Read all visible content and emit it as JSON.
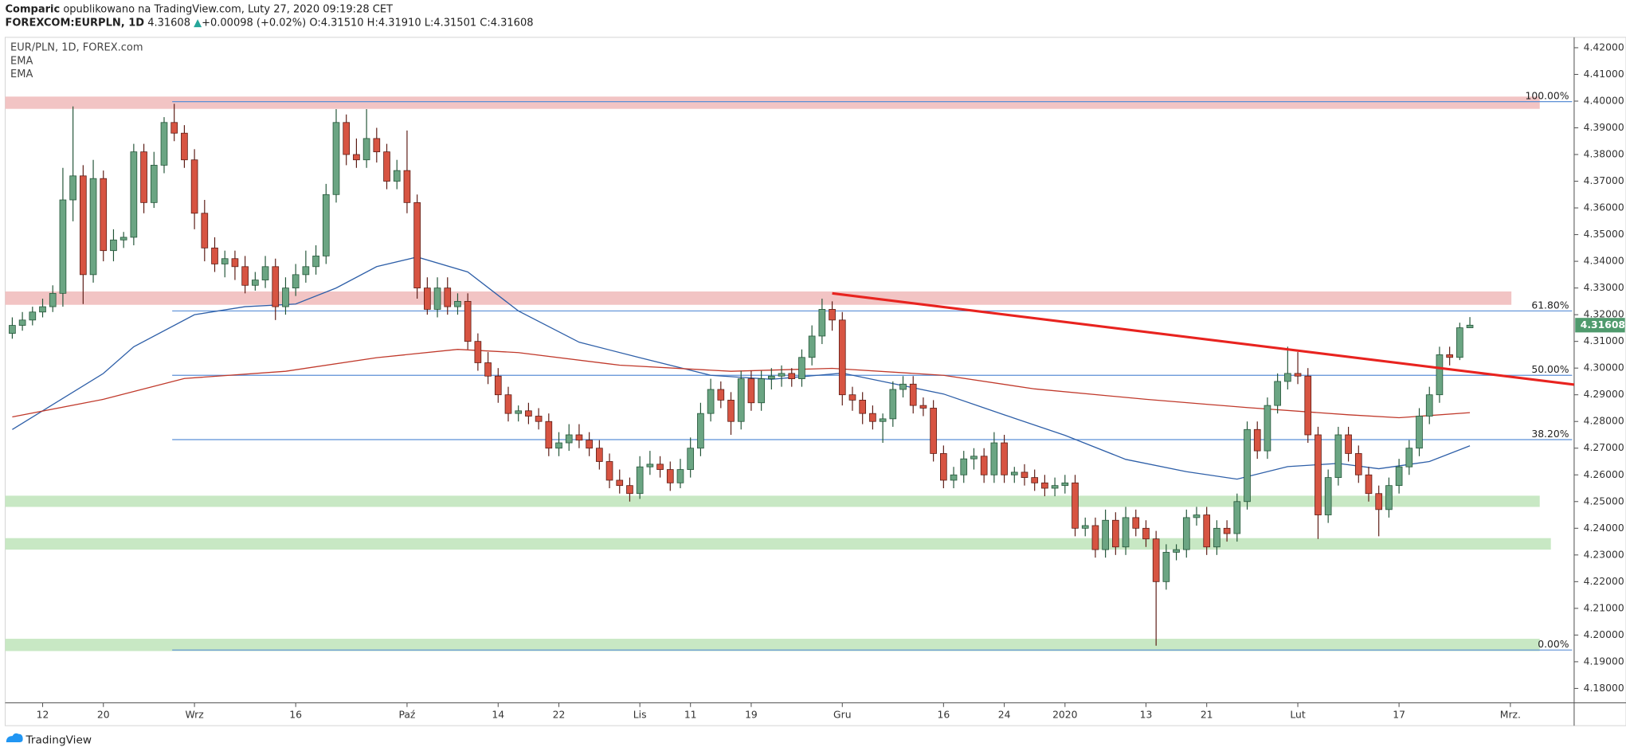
{
  "header": {
    "author": "Comparic",
    "published": "opublikowano na TradingView.com, Luty 27, 2020 09:19:28 CET",
    "symbol": "FOREXCOM:EURPLN, 1D",
    "last": "4.31608",
    "arrow": "▲",
    "change": "+0.00098 (+0.02%)",
    "open": "O:4.31510",
    "high": "H:4.31910",
    "low": "L:4.31501",
    "close": "C:4.31608"
  },
  "footer": {
    "brand": "TradingView"
  },
  "chart_data": {
    "type": "candlestick",
    "title": "EUR/PLN, 1D, FOREX.com",
    "up_color": "#6ba583",
    "down_color": "#d75442",
    "up_border": "#225437",
    "down_border": "#5b1a13",
    "xlim": [
      -0.7,
      154.3
    ],
    "ylim": [
      4.1746,
      4.4239
    ],
    "xticks": [
      {
        "value": 3,
        "label": "12"
      },
      {
        "value": 9,
        "label": "20"
      },
      {
        "value": 18,
        "label": "Wrz"
      },
      {
        "value": 28,
        "label": "16"
      },
      {
        "value": 39,
        "label": "Paź"
      },
      {
        "value": 48,
        "label": "14"
      },
      {
        "value": 54,
        "label": "22"
      },
      {
        "value": 62,
        "label": "Lis"
      },
      {
        "value": 67,
        "label": "11"
      },
      {
        "value": 73,
        "label": "19"
      },
      {
        "value": 82,
        "label": "Gru"
      },
      {
        "value": 92,
        "label": "16"
      },
      {
        "value": 98,
        "label": "24"
      },
      {
        "value": 104,
        "label": "2020"
      },
      {
        "value": 112,
        "label": "13"
      },
      {
        "value": 118,
        "label": "21"
      },
      {
        "value": 127,
        "label": "Lut"
      },
      {
        "value": 137,
        "label": "17"
      },
      {
        "value": 148,
        "label": "Mrz."
      }
    ],
    "yticks": [
      {
        "value": 4.18,
        "label": "4.18000"
      },
      {
        "value": 4.19,
        "label": "4.19000"
      },
      {
        "value": 4.2,
        "label": "4.20000"
      },
      {
        "value": 4.21,
        "label": "4.21000"
      },
      {
        "value": 4.22,
        "label": "4.22000"
      },
      {
        "value": 4.23,
        "label": "4.23000"
      },
      {
        "value": 4.24,
        "label": "4.24000"
      },
      {
        "value": 4.25,
        "label": "4.25000"
      },
      {
        "value": 4.26,
        "label": "4.26000"
      },
      {
        "value": 4.27,
        "label": "4.27000"
      },
      {
        "value": 4.28,
        "label": "4.28000"
      },
      {
        "value": 4.29,
        "label": "4.29000"
      },
      {
        "value": 4.3,
        "label": "4.30000"
      },
      {
        "value": 4.31,
        "label": "4.31000"
      },
      {
        "value": 4.32,
        "label": "4.32000"
      },
      {
        "value": 4.33,
        "label": "4.33000"
      },
      {
        "value": 4.34,
        "label": "4.34000"
      },
      {
        "value": 4.35,
        "label": "4.35000"
      },
      {
        "value": 4.36,
        "label": "4.36000"
      },
      {
        "value": 4.37,
        "label": "4.37000"
      },
      {
        "value": 4.38,
        "label": "4.38000"
      },
      {
        "value": 4.39,
        "label": "4.39000"
      },
      {
        "value": 4.4,
        "label": "4.40000"
      },
      {
        "value": 4.41,
        "label": "4.41000"
      },
      {
        "value": 4.42,
        "label": "4.42000"
      }
    ],
    "ohlc": [
      [
        4.313,
        4.319,
        4.311,
        4.316
      ],
      [
        4.316,
        4.321,
        4.314,
        4.318
      ],
      [
        4.318,
        4.323,
        4.316,
        4.321
      ],
      [
        4.321,
        4.326,
        4.319,
        4.323
      ],
      [
        4.323,
        4.331,
        4.321,
        4.328
      ],
      [
        4.328,
        4.375,
        4.323,
        4.363
      ],
      [
        4.363,
        4.398,
        4.355,
        4.372
      ],
      [
        4.372,
        4.376,
        4.324,
        4.335
      ],
      [
        4.335,
        4.378,
        4.332,
        4.371
      ],
      [
        4.371,
        4.374,
        4.34,
        4.344
      ],
      [
        4.344,
        4.352,
        4.34,
        4.348
      ],
      [
        4.348,
        4.351,
        4.345,
        4.349
      ],
      [
        4.349,
        4.384,
        4.346,
        4.381
      ],
      [
        4.381,
        4.384,
        4.358,
        4.362
      ],
      [
        4.362,
        4.381,
        4.36,
        4.376
      ],
      [
        4.376,
        4.394,
        4.373,
        4.392
      ],
      [
        4.392,
        4.399,
        4.385,
        4.388
      ],
      [
        4.388,
        4.391,
        4.375,
        4.378
      ],
      [
        4.378,
        4.382,
        4.352,
        4.358
      ],
      [
        4.358,
        4.363,
        4.34,
        4.345
      ],
      [
        4.345,
        4.349,
        4.336,
        4.339
      ],
      [
        4.339,
        4.344,
        4.334,
        4.341
      ],
      [
        4.341,
        4.344,
        4.333,
        4.338
      ],
      [
        4.338,
        4.342,
        4.328,
        4.331
      ],
      [
        4.331,
        4.336,
        4.329,
        4.333
      ],
      [
        4.333,
        4.342,
        4.33,
        4.338
      ],
      [
        4.338,
        4.341,
        4.318,
        4.323
      ],
      [
        4.323,
        4.334,
        4.32,
        4.33
      ],
      [
        4.33,
        4.339,
        4.327,
        4.335
      ],
      [
        4.335,
        4.344,
        4.332,
        4.338
      ],
      [
        4.338,
        4.346,
        4.335,
        4.342
      ],
      [
        4.342,
        4.369,
        4.339,
        4.365
      ],
      [
        4.365,
        4.397,
        4.362,
        4.392
      ],
      [
        4.392,
        4.395,
        4.376,
        4.38
      ],
      [
        4.38,
        4.386,
        4.375,
        4.378
      ],
      [
        4.378,
        4.397,
        4.375,
        4.386
      ],
      [
        4.386,
        4.39,
        4.377,
        4.381
      ],
      [
        4.381,
        4.384,
        4.367,
        4.37
      ],
      [
        4.37,
        4.378,
        4.367,
        4.374
      ],
      [
        4.374,
        4.389,
        4.358,
        4.362
      ],
      [
        4.362,
        4.365,
        4.326,
        4.33
      ],
      [
        4.33,
        4.334,
        4.32,
        4.322
      ],
      [
        4.322,
        4.334,
        4.319,
        4.33
      ],
      [
        4.33,
        4.334,
        4.32,
        4.323
      ],
      [
        4.323,
        4.328,
        4.32,
        4.325
      ],
      [
        4.325,
        4.328,
        4.307,
        4.31
      ],
      [
        4.31,
        4.313,
        4.299,
        4.302
      ],
      [
        4.302,
        4.306,
        4.294,
        4.297
      ],
      [
        4.297,
        4.3,
        4.287,
        4.29
      ],
      [
        4.29,
        4.293,
        4.28,
        4.283
      ],
      [
        4.283,
        4.286,
        4.28,
        4.284
      ],
      [
        4.284,
        4.287,
        4.279,
        4.282
      ],
      [
        4.282,
        4.285,
        4.277,
        4.28
      ],
      [
        4.28,
        4.283,
        4.267,
        4.27
      ],
      [
        4.27,
        4.276,
        4.267,
        4.272
      ],
      [
        4.272,
        4.279,
        4.269,
        4.275
      ],
      [
        4.275,
        4.279,
        4.27,
        4.273
      ],
      [
        4.273,
        4.276,
        4.267,
        4.27
      ],
      [
        4.27,
        4.273,
        4.262,
        4.265
      ],
      [
        4.265,
        4.268,
        4.255,
        4.258
      ],
      [
        4.258,
        4.262,
        4.253,
        4.256
      ],
      [
        4.256,
        4.259,
        4.25,
        4.253
      ],
      [
        4.253,
        4.267,
        4.251,
        4.263
      ],
      [
        4.263,
        4.269,
        4.26,
        4.264
      ],
      [
        4.264,
        4.267,
        4.259,
        4.262
      ],
      [
        4.262,
        4.265,
        4.254,
        4.257
      ],
      [
        4.257,
        4.266,
        4.255,
        4.262
      ],
      [
        4.262,
        4.274,
        4.259,
        4.27
      ],
      [
        4.27,
        4.287,
        4.267,
        4.283
      ],
      [
        4.283,
        4.296,
        4.28,
        4.292
      ],
      [
        4.292,
        4.295,
        4.285,
        4.288
      ],
      [
        4.288,
        4.291,
        4.275,
        4.28
      ],
      [
        4.28,
        4.299,
        4.277,
        4.296
      ],
      [
        4.296,
        4.299,
        4.284,
        4.287
      ],
      [
        4.287,
        4.299,
        4.284,
        4.296
      ],
      [
        4.296,
        4.3,
        4.292,
        4.297
      ],
      [
        4.297,
        4.301,
        4.293,
        4.298
      ],
      [
        4.298,
        4.3,
        4.293,
        4.296
      ],
      [
        4.296,
        4.307,
        4.293,
        4.304
      ],
      [
        4.304,
        4.316,
        4.301,
        4.312
      ],
      [
        4.312,
        4.326,
        4.309,
        4.322
      ],
      [
        4.322,
        4.325,
        4.314,
        4.318
      ],
      [
        4.318,
        4.321,
        4.286,
        4.29
      ],
      [
        4.29,
        4.293,
        4.284,
        4.288
      ],
      [
        4.288,
        4.291,
        4.279,
        4.283
      ],
      [
        4.283,
        4.286,
        4.277,
        4.28
      ],
      [
        4.28,
        4.283,
        4.272,
        4.281
      ],
      [
        4.281,
        4.295,
        4.278,
        4.292
      ],
      [
        4.292,
        4.297,
        4.289,
        4.294
      ],
      [
        4.294,
        4.297,
        4.283,
        4.286
      ],
      [
        4.286,
        4.289,
        4.282,
        4.285
      ],
      [
        4.285,
        4.288,
        4.265,
        4.268
      ],
      [
        4.268,
        4.271,
        4.255,
        4.258
      ],
      [
        4.258,
        4.263,
        4.255,
        4.26
      ],
      [
        4.26,
        4.269,
        4.257,
        4.266
      ],
      [
        4.266,
        4.27,
        4.262,
        4.267
      ],
      [
        4.267,
        4.27,
        4.257,
        4.26
      ],
      [
        4.26,
        4.276,
        4.257,
        4.272
      ],
      [
        4.272,
        4.275,
        4.257,
        4.26
      ],
      [
        4.26,
        4.263,
        4.257,
        4.261
      ],
      [
        4.261,
        4.264,
        4.256,
        4.259
      ],
      [
        4.259,
        4.262,
        4.254,
        4.257
      ],
      [
        4.257,
        4.26,
        4.252,
        4.255
      ],
      [
        4.255,
        4.259,
        4.252,
        4.256
      ],
      [
        4.256,
        4.26,
        4.253,
        4.257
      ],
      [
        4.257,
        4.26,
        4.237,
        4.24
      ],
      [
        4.24,
        4.244,
        4.237,
        4.241
      ],
      [
        4.241,
        4.244,
        4.229,
        4.232
      ],
      [
        4.232,
        4.247,
        4.229,
        4.243
      ],
      [
        4.243,
        4.246,
        4.23,
        4.233
      ],
      [
        4.233,
        4.248,
        4.23,
        4.244
      ],
      [
        4.244,
        4.247,
        4.237,
        4.24
      ],
      [
        4.24,
        4.243,
        4.233,
        4.236
      ],
      [
        4.236,
        4.239,
        4.196,
        4.22
      ],
      [
        4.22,
        4.234,
        4.217,
        4.231
      ],
      [
        4.231,
        4.234,
        4.228,
        4.232
      ],
      [
        4.232,
        4.247,
        4.229,
        4.244
      ],
      [
        4.244,
        4.248,
        4.241,
        4.245
      ],
      [
        4.245,
        4.248,
        4.23,
        4.233
      ],
      [
        4.233,
        4.243,
        4.23,
        4.24
      ],
      [
        4.24,
        4.243,
        4.235,
        4.238
      ],
      [
        4.238,
        4.253,
        4.235,
        4.25
      ],
      [
        4.25,
        4.28,
        4.247,
        4.277
      ],
      [
        4.277,
        4.28,
        4.266,
        4.269
      ],
      [
        4.269,
        4.289,
        4.266,
        4.286
      ],
      [
        4.286,
        4.298,
        4.283,
        4.295
      ],
      [
        4.295,
        4.308,
        4.292,
        4.298
      ],
      [
        4.298,
        4.306,
        4.294,
        4.297
      ],
      [
        4.297,
        4.3,
        4.272,
        4.275
      ],
      [
        4.275,
        4.278,
        4.236,
        4.245
      ],
      [
        4.245,
        4.262,
        4.242,
        4.259
      ],
      [
        4.259,
        4.278,
        4.256,
        4.275
      ],
      [
        4.275,
        4.278,
        4.265,
        4.268
      ],
      [
        4.268,
        4.271,
        4.257,
        4.26
      ],
      [
        4.26,
        4.263,
        4.25,
        4.253
      ],
      [
        4.253,
        4.256,
        4.237,
        4.247
      ],
      [
        4.247,
        4.259,
        4.244,
        4.256
      ],
      [
        4.256,
        4.266,
        4.253,
        4.263
      ],
      [
        4.263,
        4.273,
        4.26,
        4.27
      ],
      [
        4.27,
        4.285,
        4.267,
        4.282
      ],
      [
        4.282,
        4.293,
        4.279,
        4.29
      ],
      [
        4.29,
        4.308,
        4.287,
        4.305
      ],
      [
        4.305,
        4.308,
        4.301,
        4.304
      ],
      [
        4.304,
        4.317,
        4.303,
        4.3151
      ],
      [
        4.3151,
        4.3191,
        4.31501,
        4.31608
      ]
    ],
    "ema": [
      {
        "name": "EMA",
        "color": "#2e5fa8",
        "x": [
          0,
          9,
          12,
          18,
          23,
          28,
          32,
          36,
          40,
          45,
          50,
          56,
          62,
          69,
          75,
          82,
          87,
          92,
          98,
          104,
          110,
          116,
          121,
          126,
          131,
          135,
          140,
          144
        ],
        "values": [
          4.277,
          4.298,
          4.308,
          4.32,
          4.323,
          4.324,
          4.33,
          4.338,
          4.3416,
          4.336,
          4.3214,
          4.3097,
          4.3039,
          4.2973,
          4.2958,
          4.2981,
          4.2942,
          4.2903,
          4.2825,
          4.2748,
          4.2658,
          4.2612,
          4.2584,
          4.2631,
          4.2643,
          4.2623,
          4.265,
          4.2709
        ]
      },
      {
        "name": "EMA",
        "color": "#c0392b",
        "x": [
          0,
          9,
          17,
          27,
          36,
          44,
          50,
          60,
          71,
          81,
          92,
          101,
          112,
          122,
          132,
          137,
          144
        ],
        "values": [
          4.2817,
          4.2883,
          4.2961,
          4.2988,
          4.3039,
          4.307,
          4.3058,
          4.3011,
          4.2988,
          4.2999,
          4.2973,
          4.2922,
          4.2883,
          4.2852,
          4.2825,
          4.2814,
          4.2833
        ]
      }
    ],
    "zones": [
      {
        "color": "#f2c4c4",
        "x": [
          -0.7,
          150.9
        ],
        "y": [
          4.3971,
          4.4017
        ]
      },
      {
        "color": "#f2c4c4",
        "x": [
          -0.7,
          148.1
        ],
        "y": [
          4.3237,
          4.3287
        ]
      },
      {
        "color": "#c8e8c4",
        "x": [
          -0.7,
          150.9
        ],
        "y": [
          4.248,
          4.2522
        ]
      },
      {
        "color": "#c8e8c4",
        "x": [
          -0.7,
          152.0
        ],
        "y": [
          4.232,
          4.2363
        ]
      },
      {
        "color": "#c8e8c4",
        "x": [
          -0.7,
          150.9
        ],
        "y": [
          4.194,
          4.1986
        ]
      }
    ],
    "fib": {
      "color": "#5b8fd6",
      "x": [
        15.8,
        154.1
      ],
      "levels": [
        {
          "value": 4.3998,
          "label": "100.00%"
        },
        {
          "value": 4.3214,
          "label": "61.80%"
        },
        {
          "value": 4.2973,
          "label": "50.00%"
        },
        {
          "value": 4.2732,
          "label": "38.20%"
        },
        {
          "value": 4.1944,
          "label": "0.00%"
        }
      ]
    },
    "trendline": {
      "color": "#e8231f",
      "x": [
        81,
        154.3
      ],
      "values": [
        4.328,
        4.2938
      ]
    }
  }
}
